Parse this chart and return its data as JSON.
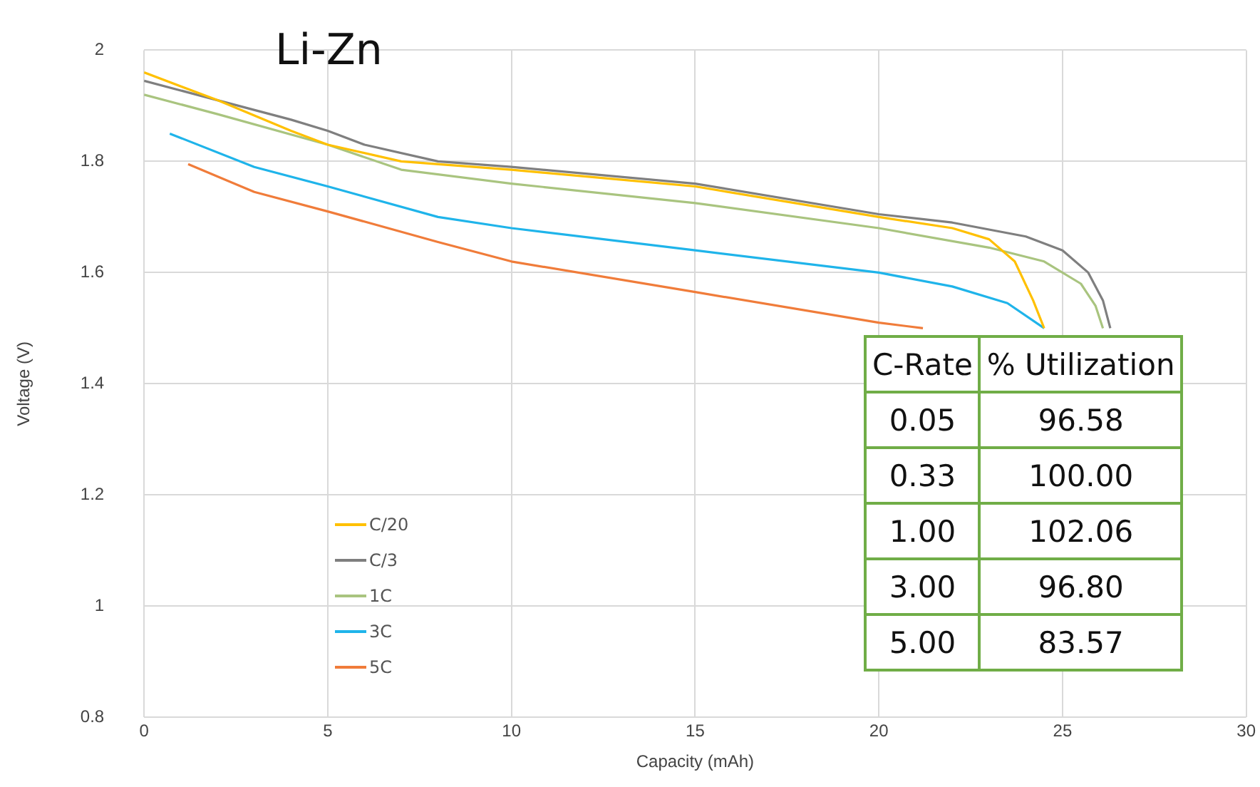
{
  "chart_data": {
    "type": "line",
    "title": "Li-Zn",
    "xlabel": "Capacity (mAh)",
    "ylabel": "Voltage (V)",
    "xlim": [
      0,
      30
    ],
    "xticks": [
      0,
      5,
      10,
      15,
      20,
      25,
      30
    ],
    "ylim": [
      0.8,
      2
    ],
    "yticks": [
      0.8,
      1,
      1.2,
      1.4,
      1.6,
      1.8,
      2
    ],
    "grid": true,
    "legend": "bottom left",
    "marker": "none",
    "line_style": "solid",
    "series": [
      {
        "name": "C/20",
        "color": "#ffc000",
        "x": [
          0,
          2,
          4,
          5,
          7,
          10,
          15,
          20,
          22,
          23,
          23.7,
          24.2,
          24.5
        ],
        "values": [
          1.96,
          1.91,
          1.855,
          1.83,
          1.8,
          1.785,
          1.755,
          1.7,
          1.68,
          1.66,
          1.62,
          1.55,
          1.5
        ]
      },
      {
        "name": "C/3",
        "color": "#7f7f7f",
        "x": [
          0,
          2,
          4,
          5,
          6,
          8,
          10,
          15,
          20,
          22,
          24,
          25,
          25.7,
          26.1,
          26.3
        ],
        "values": [
          1.945,
          1.91,
          1.875,
          1.855,
          1.83,
          1.8,
          1.79,
          1.76,
          1.705,
          1.69,
          1.665,
          1.64,
          1.6,
          1.55,
          1.5
        ]
      },
      {
        "name": "1C",
        "color": "#a9c47f",
        "x": [
          0,
          2,
          5,
          7,
          10,
          15,
          20,
          23,
          24.5,
          25.5,
          25.9,
          26.1
        ],
        "values": [
          1.92,
          1.885,
          1.83,
          1.785,
          1.76,
          1.725,
          1.68,
          1.645,
          1.62,
          1.58,
          1.54,
          1.5
        ]
      },
      {
        "name": "3C",
        "color": "#1fb4ea",
        "x": [
          0.7,
          3,
          5,
          8,
          10,
          15,
          20,
          22,
          23.5,
          24.5
        ],
        "values": [
          1.85,
          1.79,
          1.755,
          1.7,
          1.68,
          1.64,
          1.6,
          1.575,
          1.545,
          1.5
        ]
      },
      {
        "name": "5C",
        "color": "#f07c3a",
        "x": [
          1.2,
          3,
          5,
          8,
          10,
          15,
          20,
          21.2
        ],
        "values": [
          1.795,
          1.745,
          1.71,
          1.655,
          1.62,
          1.565,
          1.51,
          1.5
        ]
      }
    ],
    "annotations": [
      "C-Rate",
      "% Utilization",
      "0.05",
      "96.58",
      "0.33",
      "100.00",
      "1.00",
      "102.06",
      "3.00",
      "96.80",
      "5.00",
      "83.57"
    ]
  }
}
